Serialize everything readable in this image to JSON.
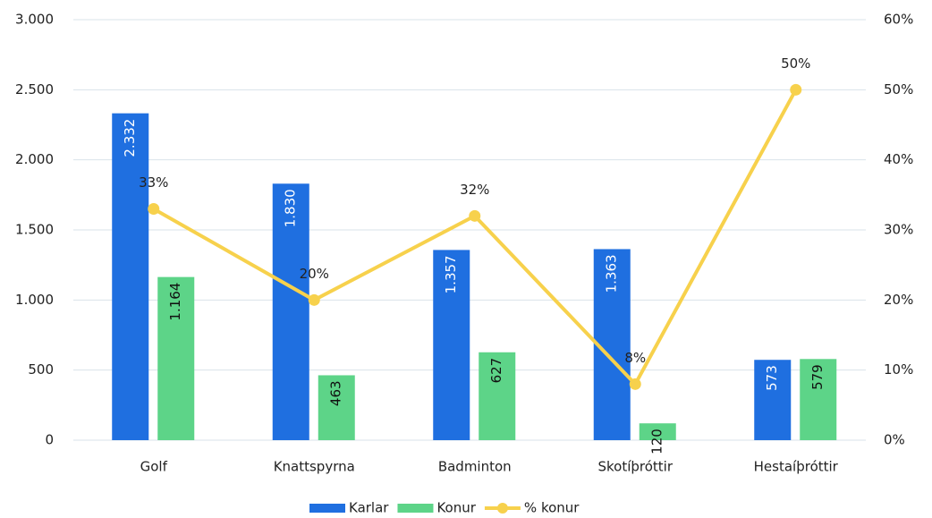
{
  "chart_data": {
    "type": "bar",
    "categories": [
      "Golf",
      "Knattspyrna",
      "Badminton",
      "Skotíþróttir",
      "Hestaíþróttir"
    ],
    "series": [
      {
        "name": "Karlar",
        "color": "#1f6fe0",
        "values": [
          2332,
          1830,
          1357,
          1363,
          573
        ],
        "value_labels": [
          "2.332",
          "1.830",
          "1.357",
          "1.363",
          "573"
        ]
      },
      {
        "name": "Konur",
        "color": "#5dd488",
        "values": [
          1164,
          463,
          627,
          120,
          579
        ],
        "value_labels": [
          "1.164",
          "463",
          "627",
          "120",
          "579"
        ]
      },
      {
        "name": "% konur",
        "type": "line",
        "axis": "y2",
        "color": "#f7d14c",
        "values": [
          33,
          20,
          32,
          8,
          50
        ],
        "value_labels": [
          "33%",
          "20%",
          "32%",
          "8%",
          "50%"
        ]
      }
    ],
    "ylim": [
      0,
      3000
    ],
    "yticks": [
      0,
      500,
      {
        "value": 1000,
        "label": "1.000"
      },
      {
        "value": 1500,
        "label": "1.500"
      },
      {
        "value": 2000,
        "label": "2.000"
      },
      {
        "value": 2500,
        "label": "2.500"
      },
      {
        "value": 3000,
        "label": "3.000"
      }
    ],
    "y2lim": [
      0,
      60
    ],
    "y2ticks": [
      {
        "value": 0,
        "label": "0%"
      },
      {
        "value": 10,
        "label": "10%"
      },
      {
        "value": 20,
        "label": "20%"
      },
      {
        "value": 30,
        "label": "30%"
      },
      {
        "value": 40,
        "label": "40%"
      },
      {
        "value": 50,
        "label": "50%"
      },
      {
        "value": 60,
        "label": "60%"
      }
    ],
    "grid": true,
    "legend": "bottom"
  }
}
